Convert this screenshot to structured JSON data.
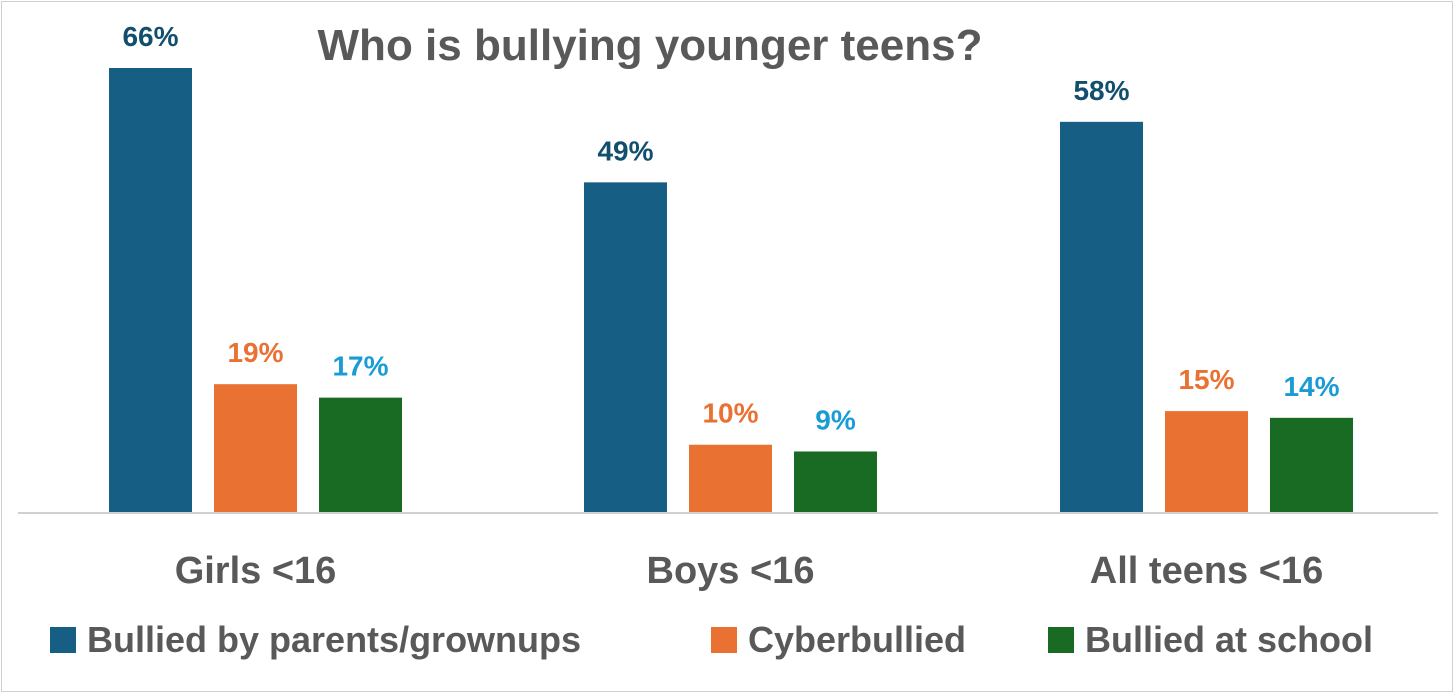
{
  "chart_data": {
    "type": "bar",
    "title": "Who is bullying younger teens?",
    "categories": [
      "Girls <16",
      "Boys <16",
      "All teens <16"
    ],
    "series": [
      {
        "name": "Bullied by parents/grownups",
        "values": [
          66,
          49,
          58
        ],
        "labels": [
          "66%",
          "49%",
          "58%"
        ],
        "color": "#175E84",
        "label_color": "#124E6E"
      },
      {
        "name": "Cyberbullied",
        "values": [
          19,
          10,
          15
        ],
        "labels": [
          "19%",
          "10%",
          "15%"
        ],
        "color": "#E97132",
        "label_color": "#E97132"
      },
      {
        "name": "Bullied at school",
        "values": [
          17,
          9,
          14
        ],
        "labels": [
          "17%",
          "9%",
          "14%"
        ],
        "color": "#196B24",
        "label_color": "#199CD6"
      }
    ],
    "ylim": [
      0,
      66
    ],
    "grid": false,
    "legend_position": "bottom"
  }
}
